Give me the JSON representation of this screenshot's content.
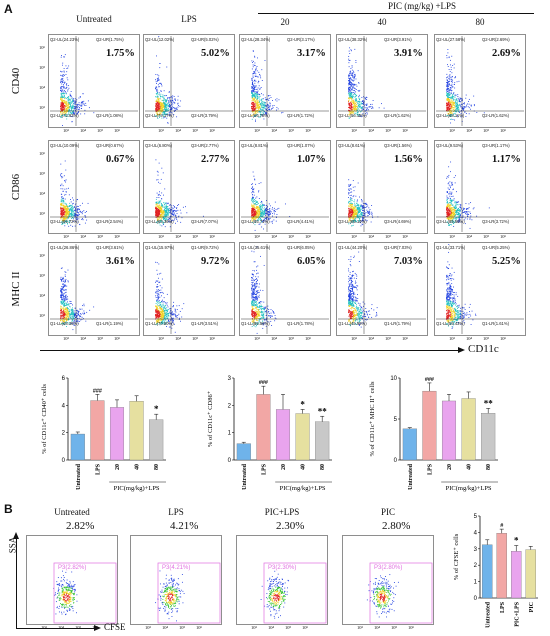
{
  "panel_a": {
    "label": "A",
    "col_headers": [
      "Untreated",
      "LPS",
      "20",
      "40",
      "80"
    ],
    "dose_header": "PIC (mg/kg) +LPS",
    "row_labels": [
      "CD40",
      "CD86",
      "MHC II"
    ],
    "x_axis_label": "CD11c",
    "axis_ticks": [
      "10²",
      "10³",
      "10⁴",
      "10⁵",
      "10⁶"
    ],
    "y_axis_ticks": [
      "10²",
      "10³",
      "10⁴",
      "10⁵",
      "10⁶"
    ],
    "rows": [
      {
        "prefix": "Q2",
        "plots": [
          {
            "ul": "Q2-UL(24.23%)",
            "ur": "Q2-UR(1.75%)",
            "ll": "Q2-LL(72.93%)",
            "lr": "Q2-LR(1.08%)",
            "pct": "1.75%"
          },
          {
            "ul": "Q2-UL(12.02%)",
            "ur": "Q2-UR(5.02%)",
            "ll": "Q2-LL(79.17%)",
            "lr": "Q2-LR(3.79%)",
            "pct": "5.02%"
          },
          {
            "ul": "Q2-UL(28.34%)",
            "ur": "Q2-UR(3.17%)",
            "ll": "Q2-LL(66.78%)",
            "lr": "Q2-LR(1.72%)",
            "pct": "3.17%"
          },
          {
            "ul": "Q2-UL(38.32%)",
            "ur": "Q2-UR(3.91%)",
            "ll": "Q2-LL(56.15%)",
            "lr": "Q2-LR(1.62%)",
            "pct": "3.91%"
          },
          {
            "ul": "Q2-UL(27.58%)",
            "ur": "Q2-UR(2.69%)",
            "ll": "Q2-LL(68.11%)",
            "lr": "Q2-LR(1.62%)",
            "pct": "2.69%"
          }
        ]
      },
      {
        "prefix": "Q3",
        "plots": [
          {
            "ul": "Q3-UL(10.09%)",
            "ur": "Q3-UR(0.67%)",
            "ll": "Q3-LL(86.72%)",
            "lr": "Q3-LR(2.54%)",
            "pct": "0.67%"
          },
          {
            "ul": "Q3-UL(6.80%)",
            "ur": "Q3-UR(2.77%)",
            "ll": "Q3-LL(83.36%)",
            "lr": "Q3-LR(7.07%)",
            "pct": "2.77%"
          },
          {
            "ul": "Q3-UL(8.81%)",
            "ur": "Q3-UR(1.07%)",
            "ll": "Q3-LL(85.71%)",
            "lr": "Q3-LR(4.41%)",
            "pct": "1.07%"
          },
          {
            "ul": "Q3-UL(8.61%)",
            "ur": "Q3-UR(1.56%)",
            "ll": "Q3-LL(85.14%)",
            "lr": "Q3-LR(4.69%)",
            "pct": "1.56%"
          },
          {
            "ul": "Q3-UL(9.53%)",
            "ur": "Q3-UR(1.17%)",
            "ll": "Q3-LL(85.56%)",
            "lr": "Q3-LR(3.72%)",
            "pct": "1.17%"
          }
        ]
      },
      {
        "prefix": "Q1",
        "plots": [
          {
            "ul": "Q1-UL(26.86%)",
            "ur": "Q1-UR(3.61%)",
            "ll": "Q1-LL(68.35%)",
            "lr": "Q1-LR(1.19%)",
            "pct": "3.61%"
          },
          {
            "ul": "Q1-UL(15.97%)",
            "ur": "Q1-UR(9.72%)",
            "ll": "Q1-LL(70.80%)",
            "lr": "Q1-LR(3.51%)",
            "pct": "9.72%"
          },
          {
            "ul": "Q1-UL(35.61%)",
            "ur": "Q1-UR(6.05%)",
            "ll": "Q1-LL(56.56%)",
            "lr": "Q1-LR(1.78%)",
            "pct": "6.05%"
          },
          {
            "ul": "Q1-UL(44.20%)",
            "ur": "Q1-UR(7.03%)",
            "ll": "Q1-LL(45.98%)",
            "lr": "Q1-LR(1.79%)",
            "pct": "7.03%"
          },
          {
            "ul": "Q1-UL(33.71%)",
            "ur": "Q1-UR(5.25%)",
            "ll": "Q1-LL(59.43%)",
            "lr": "Q1-LR(1.61%)",
            "pct": "5.25%"
          }
        ]
      }
    ]
  },
  "panel_b": {
    "label": "B",
    "col_headers": [
      "Untreated",
      "LPS",
      "PIC+LPS",
      "PIC"
    ],
    "pcts": [
      "2.82%",
      "4.21%",
      "2.30%",
      "2.80%"
    ],
    "gates": [
      "P3(2.82%)",
      "P3(4.21%)",
      "P3(2.30%)",
      "P3(2.80%)"
    ],
    "y_axis_label": "SSA",
    "x_axis_label": "CFSE"
  },
  "colors": {
    "bar_untreated": "#6fb3ea",
    "bar_lps": "#f2a7a5",
    "bar_20": "#e9a4ee",
    "bar_40": "#e6e0a0",
    "bar_80": "#c8c8c8",
    "gate": "#e070e0"
  },
  "chart_data": [
    {
      "type": "bar",
      "categories": [
        "Untreated",
        "LPS",
        "20",
        "40",
        "80"
      ],
      "values": [
        1.9,
        4.35,
        3.85,
        4.3,
        2.95
      ],
      "errors": [
        0.15,
        0.45,
        0.55,
        0.4,
        0.4
      ],
      "sig": [
        "",
        "###",
        "",
        "",
        "*"
      ],
      "ylim": [
        0,
        6
      ],
      "yticks": [
        "0",
        "2",
        "4",
        "6"
      ],
      "ylabel": "% of CD11c⁺ CD40⁺ cells",
      "xlabel": "PIC(mg/kg)+LPS"
    },
    {
      "type": "bar",
      "categories": [
        "Untreated",
        "LPS",
        "20",
        "40",
        "80"
      ],
      "values": [
        0.6,
        2.4,
        1.85,
        1.7,
        1.4
      ],
      "errors": [
        0.05,
        0.3,
        0.55,
        0.15,
        0.2
      ],
      "sig": [
        "",
        "###",
        "",
        "*",
        "**"
      ],
      "ylim": [
        0,
        3
      ],
      "yticks": [
        "0",
        "1",
        "2",
        "3"
      ],
      "ylabel": "% of CD11c⁺ CD86⁺",
      "xlabel": "PIC(mg/kg)+LPS"
    },
    {
      "type": "bar",
      "categories": [
        "Untreated",
        "LPS",
        "20",
        "40",
        "80"
      ],
      "values": [
        3.8,
        8.4,
        7.2,
        7.5,
        5.7
      ],
      "errors": [
        0.15,
        1.0,
        0.8,
        0.8,
        0.6
      ],
      "sig": [
        "",
        "###",
        "",
        "",
        "**"
      ],
      "ylim": [
        0,
        10
      ],
      "yticks": [
        "0",
        "5",
        "10"
      ],
      "ylabel": "% of CD11c⁺ MHC II⁺ cells",
      "xlabel": "PIC(mg/kg)+LPS"
    },
    {
      "type": "bar",
      "categories": [
        "Untreated",
        "LPS",
        "PIC+LPS",
        "PIC"
      ],
      "values": [
        3.25,
        3.95,
        2.85,
        2.95
      ],
      "errors": [
        0.3,
        0.25,
        0.35,
        0.2
      ],
      "sig": [
        "",
        "#",
        "*",
        ""
      ],
      "ylim": [
        0,
        5
      ],
      "yticks": [
        "0",
        "1",
        "2",
        "3",
        "4",
        "5"
      ],
      "ylabel": "% of CFSE⁺ cells",
      "xlabel": ""
    }
  ]
}
